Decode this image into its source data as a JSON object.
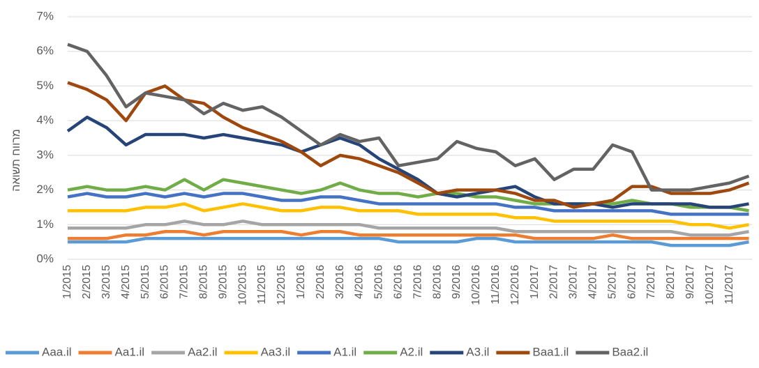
{
  "chart_data": {
    "type": "line",
    "y_label": "מרווח תשואה",
    "categories": [
      "1/2015",
      "2/2015",
      "3/2015",
      "4/2015",
      "5/2015",
      "6/2015",
      "7/2015",
      "8/2015",
      "9/2015",
      "10/2015",
      "11/2015",
      "12/2015",
      "1/2016",
      "2/2016",
      "3/2016",
      "4/2016",
      "5/2016",
      "6/2016",
      "7/2016",
      "8/2016",
      "9/2016",
      "10/2016",
      "11/2016",
      "12/2016",
      "1/2017",
      "2/2017",
      "3/2017",
      "4/2017",
      "5/2017",
      "6/2017",
      "7/2017",
      "8/2017",
      "9/2017",
      "10/2017",
      "11/2017",
      null
    ],
    "ylim": [
      0,
      7
    ],
    "yticks": [
      {
        "value": 0,
        "label": "0%"
      },
      {
        "value": 1,
        "label": "1%"
      },
      {
        "value": 2,
        "label": "2%"
      },
      {
        "value": 3,
        "label": "3%"
      },
      {
        "value": 4,
        "label": "4%"
      },
      {
        "value": 5,
        "label": "5%"
      },
      {
        "value": 6,
        "label": "6%"
      },
      {
        "value": 7,
        "label": "7%"
      }
    ],
    "grid": true,
    "legend": "bottom",
    "series": [
      {
        "name": "Aaa.il",
        "color": "#5b9bd5",
        "values": [
          0.5,
          0.5,
          0.5,
          0.5,
          0.6,
          0.6,
          0.6,
          0.6,
          0.6,
          0.6,
          0.6,
          0.6,
          0.6,
          0.6,
          0.6,
          0.6,
          0.6,
          0.5,
          0.5,
          0.5,
          0.5,
          0.6,
          0.6,
          0.5,
          0.5,
          0.5,
          0.5,
          0.5,
          0.5,
          0.5,
          0.5,
          0.4,
          0.4,
          0.4,
          0.4,
          0.5
        ]
      },
      {
        "name": "Aa1.il",
        "color": "#ed7d31",
        "values": [
          0.6,
          0.6,
          0.6,
          0.7,
          0.7,
          0.8,
          0.8,
          0.7,
          0.8,
          0.8,
          0.8,
          0.8,
          0.7,
          0.8,
          0.8,
          0.7,
          0.7,
          0.7,
          0.7,
          0.7,
          0.7,
          0.7,
          0.7,
          0.7,
          0.6,
          0.6,
          0.6,
          0.6,
          0.7,
          0.6,
          0.6,
          0.6,
          0.6,
          0.6,
          0.6,
          0.6
        ]
      },
      {
        "name": "Aa2.il",
        "color": "#a5a5a5",
        "values": [
          0.9,
          0.9,
          0.9,
          0.9,
          1.0,
          1.0,
          1.1,
          1.0,
          1.0,
          1.1,
          1.0,
          1.0,
          1.0,
          1.0,
          1.0,
          1.0,
          0.9,
          0.9,
          0.9,
          0.9,
          0.9,
          0.9,
          0.9,
          0.8,
          0.8,
          0.8,
          0.8,
          0.8,
          0.8,
          0.8,
          0.8,
          0.8,
          0.7,
          0.7,
          0.7,
          0.8
        ]
      },
      {
        "name": "Aa3.il",
        "color": "#ffc000",
        "values": [
          1.4,
          1.4,
          1.4,
          1.4,
          1.5,
          1.5,
          1.6,
          1.4,
          1.5,
          1.6,
          1.5,
          1.4,
          1.4,
          1.5,
          1.5,
          1.4,
          1.4,
          1.4,
          1.3,
          1.3,
          1.3,
          1.3,
          1.3,
          1.2,
          1.2,
          1.1,
          1.1,
          1.1,
          1.1,
          1.1,
          1.1,
          1.1,
          1.0,
          1.0,
          0.9,
          1.0
        ]
      },
      {
        "name": "A1.il",
        "color": "#4472c4",
        "values": [
          1.8,
          1.9,
          1.8,
          1.8,
          1.9,
          1.8,
          1.9,
          1.8,
          1.9,
          1.9,
          1.8,
          1.7,
          1.7,
          1.8,
          1.8,
          1.7,
          1.6,
          1.6,
          1.6,
          1.6,
          1.6,
          1.6,
          1.6,
          1.5,
          1.5,
          1.4,
          1.4,
          1.4,
          1.4,
          1.4,
          1.4,
          1.3,
          1.3,
          1.3,
          1.3,
          1.3
        ]
      },
      {
        "name": "A2.il",
        "color": "#70ad47",
        "values": [
          2.0,
          2.1,
          2.0,
          2.0,
          2.1,
          2.0,
          2.3,
          2.0,
          2.3,
          2.2,
          2.1,
          2.0,
          1.9,
          2.0,
          2.2,
          2.0,
          1.9,
          1.9,
          1.8,
          1.9,
          1.9,
          1.8,
          1.8,
          1.7,
          1.6,
          1.6,
          1.6,
          1.6,
          1.6,
          1.7,
          1.6,
          1.6,
          1.5,
          1.5,
          1.5,
          1.4
        ]
      },
      {
        "name": "A3.il",
        "color": "#264478",
        "values": [
          3.7,
          4.1,
          3.8,
          3.3,
          3.6,
          3.6,
          3.6,
          3.5,
          3.6,
          3.5,
          3.4,
          3.3,
          3.1,
          3.3,
          3.5,
          3.3,
          2.9,
          2.6,
          2.3,
          1.9,
          1.8,
          1.9,
          2.0,
          2.1,
          1.8,
          1.6,
          1.6,
          1.6,
          1.5,
          1.6,
          1.6,
          1.6,
          1.6,
          1.5,
          1.5,
          1.6
        ]
      },
      {
        "name": "Baa1.il",
        "color": "#9e480e",
        "values": [
          5.1,
          4.9,
          4.6,
          4.0,
          4.8,
          5.0,
          4.6,
          4.5,
          4.1,
          3.8,
          3.6,
          3.4,
          3.1,
          2.7,
          3.0,
          2.9,
          2.7,
          2.5,
          2.2,
          1.9,
          2.0,
          2.0,
          2.0,
          1.9,
          1.7,
          1.7,
          1.5,
          1.6,
          1.7,
          2.1,
          2.1,
          1.9,
          1.9,
          1.9,
          2.0,
          2.2
        ]
      },
      {
        "name": "Baa2.il",
        "color": "#636363",
        "values": [
          6.2,
          6.0,
          5.3,
          4.4,
          4.8,
          4.7,
          4.6,
          4.2,
          4.5,
          4.3,
          4.4,
          4.1,
          3.7,
          3.3,
          3.6,
          3.4,
          3.5,
          2.7,
          2.8,
          2.9,
          3.4,
          3.2,
          3.1,
          2.7,
          2.9,
          2.3,
          2.6,
          2.6,
          3.3,
          3.1,
          2.0,
          2.0,
          2.0,
          2.1,
          2.2,
          2.4
        ]
      }
    ]
  }
}
